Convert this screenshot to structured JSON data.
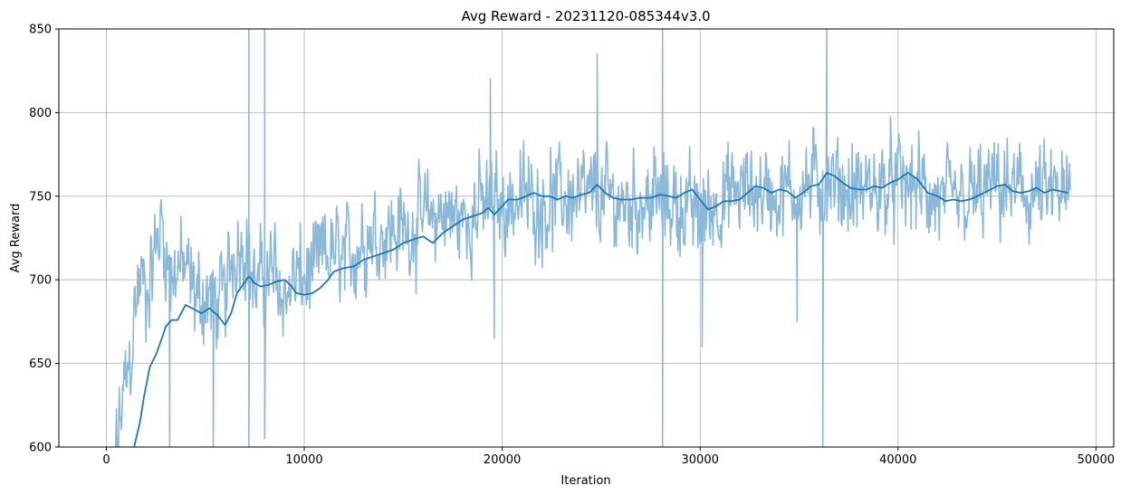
{
  "chart_data": {
    "type": "line",
    "title": "Avg Reward - 20231120-085344v3.0",
    "xlabel": "Iteration",
    "ylabel": "Avg Reward",
    "xlim": [
      -2400,
      50900
    ],
    "ylim": [
      600,
      850
    ],
    "xticks": [
      0,
      10000,
      20000,
      30000,
      40000,
      50000
    ],
    "xtick_labels": [
      "0",
      "10000",
      "20000",
      "30000",
      "40000",
      "50000"
    ],
    "yticks": [
      600,
      650,
      700,
      750,
      800,
      850
    ],
    "ytick_labels": [
      "600",
      "650",
      "700",
      "750",
      "800",
      "850"
    ],
    "grid": true,
    "colors": {
      "raw": "#8ab8d8",
      "smooth": "#1f77b4"
    },
    "series": [
      {
        "style": "raw",
        "anchors": [
          [
            200,
            560
          ],
          [
            500,
            600
          ],
          [
            800,
            625
          ],
          [
            1000,
            640
          ],
          [
            1200,
            650
          ],
          [
            1500,
            690
          ],
          [
            1800,
            700
          ],
          [
            2000,
            690
          ],
          [
            2200,
            700
          ],
          [
            2500,
            720
          ],
          [
            2800,
            735
          ],
          [
            3000,
            720
          ],
          [
            3300,
            700
          ],
          [
            3600,
            710
          ],
          [
            4000,
            705
          ],
          [
            4500,
            690
          ],
          [
            5000,
            690
          ],
          [
            5500,
            685
          ],
          [
            6000,
            690
          ],
          [
            6500,
            720
          ],
          [
            7000,
            725
          ],
          [
            7500,
            695
          ],
          [
            8000,
            700
          ],
          [
            8500,
            705
          ],
          [
            9000,
            690
          ],
          [
            9500,
            700
          ],
          [
            10000,
            700
          ],
          [
            10500,
            705
          ],
          [
            11000,
            715
          ],
          [
            11500,
            715
          ],
          [
            12000,
            710
          ],
          [
            13000,
            725
          ],
          [
            14000,
            730
          ],
          [
            15000,
            730
          ],
          [
            16000,
            735
          ],
          [
            17000,
            740
          ],
          [
            18000,
            735
          ],
          [
            19000,
            745
          ],
          [
            20000,
            745
          ],
          [
            21000,
            750
          ],
          [
            22000,
            745
          ],
          [
            23000,
            750
          ],
          [
            24000,
            748
          ],
          [
            25000,
            750
          ],
          [
            26000,
            745
          ],
          [
            27000,
            748
          ],
          [
            28000,
            748
          ],
          [
            29000,
            745
          ],
          [
            30000,
            738
          ],
          [
            31000,
            748
          ],
          [
            32000,
            752
          ],
          [
            33000,
            755
          ],
          [
            34000,
            750
          ],
          [
            35000,
            755
          ],
          [
            36000,
            758
          ],
          [
            37000,
            755
          ],
          [
            38000,
            752
          ],
          [
            39000,
            755
          ],
          [
            40000,
            758
          ],
          [
            41000,
            755
          ],
          [
            42000,
            745
          ],
          [
            43000,
            745
          ],
          [
            44000,
            750
          ],
          [
            45000,
            755
          ],
          [
            46000,
            752
          ],
          [
            47000,
            750
          ],
          [
            48000,
            750
          ],
          [
            48700,
            748
          ]
        ],
        "spikes": [
          [
            7200,
            850
          ],
          [
            7200,
            600
          ],
          [
            8000,
            850
          ],
          [
            8000,
            605
          ],
          [
            3200,
            600
          ],
          [
            5400,
            600
          ],
          [
            28100,
            850
          ],
          [
            28100,
            600
          ],
          [
            24800,
            835
          ],
          [
            19400,
            820
          ],
          [
            36400,
            850
          ],
          [
            36200,
            600
          ],
          [
            34900,
            675
          ],
          [
            30100,
            660
          ],
          [
            19600,
            665
          ],
          [
            40900,
            755
          ]
        ],
        "noise": 22,
        "samples": 1400
      },
      {
        "style": "smooth",
        "points": [
          [
            1200,
            596
          ],
          [
            1400,
            600
          ],
          [
            1700,
            615
          ],
          [
            1900,
            630
          ],
          [
            2200,
            648
          ],
          [
            2500,
            655
          ],
          [
            2800,
            665
          ],
          [
            3000,
            672
          ],
          [
            3300,
            676
          ],
          [
            3600,
            676
          ],
          [
            4000,
            685
          ],
          [
            4500,
            682
          ],
          [
            4800,
            680
          ],
          [
            5200,
            683
          ],
          [
            5600,
            679
          ],
          [
            6000,
            673
          ],
          [
            6300,
            680
          ],
          [
            6600,
            692
          ],
          [
            6900,
            697
          ],
          [
            7200,
            702
          ],
          [
            7500,
            698
          ],
          [
            7800,
            696
          ],
          [
            8200,
            697
          ],
          [
            8600,
            699
          ],
          [
            9000,
            700
          ],
          [
            9300,
            697
          ],
          [
            9600,
            692
          ],
          [
            10000,
            691
          ],
          [
            10400,
            692
          ],
          [
            10800,
            695
          ],
          [
            11200,
            700
          ],
          [
            11500,
            705
          ],
          [
            12000,
            707
          ],
          [
            12500,
            708
          ],
          [
            13000,
            712
          ],
          [
            13500,
            714
          ],
          [
            14000,
            716
          ],
          [
            14500,
            718
          ],
          [
            15000,
            722
          ],
          [
            15500,
            724
          ],
          [
            16000,
            726
          ],
          [
            16500,
            722
          ],
          [
            17000,
            728
          ],
          [
            17500,
            732
          ],
          [
            18000,
            736
          ],
          [
            18500,
            738
          ],
          [
            19000,
            740
          ],
          [
            19300,
            743
          ],
          [
            19600,
            739
          ],
          [
            20000,
            744
          ],
          [
            20300,
            748
          ],
          [
            20800,
            748
          ],
          [
            21200,
            750
          ],
          [
            21600,
            752
          ],
          [
            22000,
            750
          ],
          [
            22400,
            750
          ],
          [
            22800,
            748
          ],
          [
            23200,
            750
          ],
          [
            23600,
            749
          ],
          [
            24000,
            751
          ],
          [
            24400,
            752
          ],
          [
            24800,
            757
          ],
          [
            25200,
            752
          ],
          [
            25600,
            749
          ],
          [
            26000,
            748
          ],
          [
            26500,
            748
          ],
          [
            27000,
            749
          ],
          [
            27500,
            749
          ],
          [
            28000,
            751
          ],
          [
            28400,
            750
          ],
          [
            28800,
            749
          ],
          [
            29200,
            752
          ],
          [
            29600,
            754
          ],
          [
            30000,
            748
          ],
          [
            30400,
            742
          ],
          [
            30800,
            744
          ],
          [
            31200,
            747
          ],
          [
            31600,
            747
          ],
          [
            32000,
            748
          ],
          [
            32400,
            752
          ],
          [
            32800,
            756
          ],
          [
            33200,
            755
          ],
          [
            33600,
            752
          ],
          [
            34000,
            754
          ],
          [
            34400,
            753
          ],
          [
            34800,
            749
          ],
          [
            35200,
            752
          ],
          [
            35600,
            756
          ],
          [
            36000,
            757
          ],
          [
            36400,
            764
          ],
          [
            36800,
            762
          ],
          [
            37200,
            758
          ],
          [
            37600,
            755
          ],
          [
            38000,
            754
          ],
          [
            38400,
            754
          ],
          [
            38800,
            756
          ],
          [
            39200,
            755
          ],
          [
            39600,
            758
          ],
          [
            40000,
            760
          ],
          [
            40500,
            764
          ],
          [
            41000,
            760
          ],
          [
            41500,
            752
          ],
          [
            42000,
            750
          ],
          [
            42400,
            747
          ],
          [
            42800,
            748
          ],
          [
            43200,
            747
          ],
          [
            43600,
            748
          ],
          [
            44000,
            750
          ],
          [
            44500,
            753
          ],
          [
            45000,
            756
          ],
          [
            45400,
            757
          ],
          [
            45800,
            753
          ],
          [
            46200,
            752
          ],
          [
            46600,
            753
          ],
          [
            47000,
            755
          ],
          [
            47400,
            752
          ],
          [
            47800,
            754
          ],
          [
            48200,
            753
          ],
          [
            48600,
            752
          ]
        ]
      }
    ]
  }
}
